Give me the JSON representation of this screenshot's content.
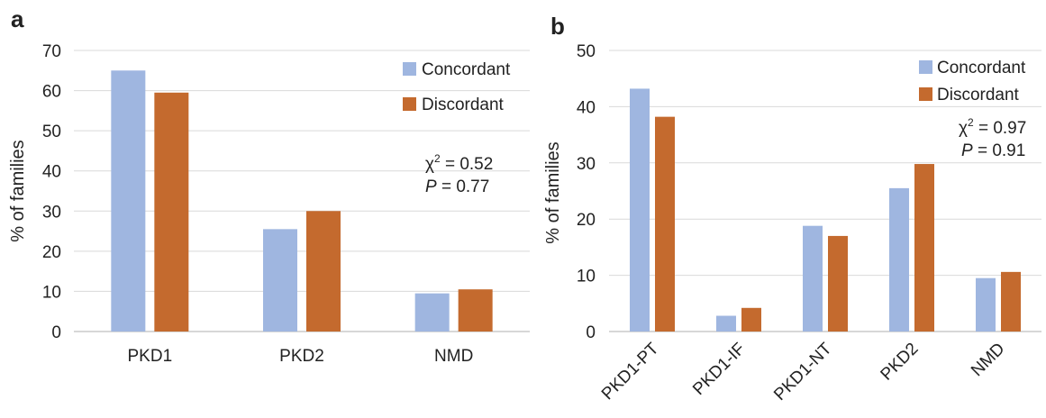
{
  "colors": {
    "concordant": "#9fb6e0",
    "discordant": "#c46a2e"
  },
  "chart_data": [
    {
      "panel": "a",
      "type": "bar",
      "ylabel": "% of families",
      "ylim": [
        0,
        70
      ],
      "yticks": [
        0,
        10,
        20,
        30,
        40,
        50,
        60,
        70
      ],
      "categories": [
        "PKD1",
        "PKD2",
        "NMD"
      ],
      "series": [
        {
          "name": "Concordant",
          "values": [
            65,
            25.5,
            9.5
          ]
        },
        {
          "name": "Discordant",
          "values": [
            59.5,
            30,
            10.5
          ]
        }
      ],
      "legend": "top-right",
      "grid": true,
      "annotation": {
        "chi_label": "χ",
        "chi_exp": "2",
        "chi_value": " = 0.52",
        "p_label": "P",
        "p_value": " = 0.77"
      }
    },
    {
      "panel": "b",
      "type": "bar",
      "ylabel": "% of families",
      "ylim": [
        0,
        50
      ],
      "yticks": [
        0,
        10,
        20,
        30,
        40,
        50
      ],
      "categories": [
        "PKD1-PT",
        "PKD1-IF",
        "PKD1-NT",
        "PKD2",
        "NMD"
      ],
      "series": [
        {
          "name": "Concordant",
          "values": [
            43.2,
            2.8,
            18.8,
            25.5,
            9.5
          ]
        },
        {
          "name": "Discordant",
          "values": [
            38.2,
            4.2,
            17,
            29.8,
            10.6
          ]
        }
      ],
      "legend": "top-right",
      "grid": true,
      "annotation": {
        "chi_label": "χ",
        "chi_exp": "2",
        "chi_value": " = 0.97",
        "p_label": "P",
        "p_value": " = 0.91"
      }
    }
  ]
}
